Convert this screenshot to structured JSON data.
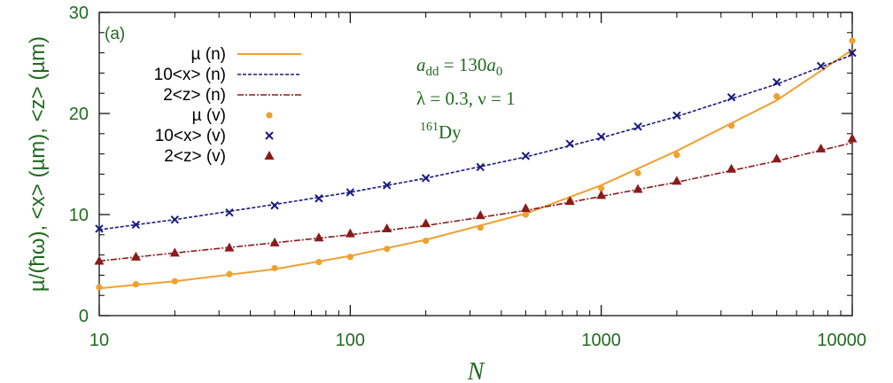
{
  "chart_data": {
    "type": "line",
    "panel_label": "(a)",
    "xlabel": "N",
    "ylabel": "µ/(ħω), <x> (µm), <z> (µm)",
    "xscale": "log",
    "xlim": [
      10,
      10000
    ],
    "ylim": [
      0,
      30
    ],
    "x_ticks": [
      10,
      100,
      1000,
      10000
    ],
    "x_tick_labels": [
      "10",
      "100",
      "1000",
      "10000"
    ],
    "y_ticks": [
      0,
      10,
      20,
      30
    ],
    "y_tick_labels": [
      "0",
      "10",
      "20",
      "30"
    ],
    "legend_position": "top-left",
    "colors": {
      "axis_text": "#1f6b1f",
      "mu": "#f0a030",
      "x": "#1a1a80",
      "z": "#8b1a1a"
    },
    "series": [
      {
        "name": "µ (n)",
        "kind": "line",
        "style": "solid",
        "color": "#f0a030",
        "x": [
          10,
          20,
          50,
          100,
          200,
          500,
          1000,
          2000,
          5000,
          10000
        ],
        "values": [
          2.7,
          3.4,
          4.6,
          5.9,
          7.5,
          10.1,
          12.9,
          16.3,
          21.3,
          26.3
        ]
      },
      {
        "name": "10<x> (n)",
        "kind": "line",
        "style": "dashed",
        "color": "#1a1a80",
        "x": [
          10,
          20,
          50,
          100,
          200,
          500,
          1000,
          2000,
          5000,
          10000
        ],
        "values": [
          8.5,
          9.5,
          11.0,
          12.2,
          13.6,
          15.7,
          17.6,
          19.7,
          22.9,
          25.8
        ]
      },
      {
        "name": "2<z> (n)",
        "kind": "line",
        "style": "dashdot",
        "color": "#8b1a1a",
        "x": [
          10,
          20,
          50,
          100,
          200,
          500,
          1000,
          2000,
          5000,
          10000
        ],
        "values": [
          5.4,
          6.2,
          7.2,
          8.0,
          8.9,
          10.4,
          11.8,
          13.2,
          15.3,
          17.1
        ]
      },
      {
        "name": "µ (v)",
        "kind": "scatter",
        "marker": "circle",
        "color": "#f0a030",
        "x": [
          10,
          14,
          20,
          33,
          50,
          75,
          100,
          140,
          200,
          330,
          500,
          750,
          1000,
          1400,
          2000,
          3300,
          5000,
          10000
        ],
        "values": [
          2.8,
          3.1,
          3.4,
          4.1,
          4.7,
          5.3,
          5.8,
          6.6,
          7.4,
          8.7,
          10.0,
          11.4,
          12.6,
          14.1,
          15.9,
          18.8,
          21.7,
          27.2
        ]
      },
      {
        "name": "10<x> (v)",
        "kind": "scatter",
        "marker": "cross",
        "color": "#1a1a80",
        "x": [
          10,
          14,
          20,
          33,
          50,
          75,
          100,
          140,
          200,
          330,
          500,
          750,
          1000,
          1400,
          2000,
          3300,
          5000,
          7500,
          10000
        ],
        "values": [
          8.6,
          9.0,
          9.5,
          10.2,
          10.9,
          11.6,
          12.2,
          12.9,
          13.6,
          14.7,
          15.8,
          17.0,
          17.7,
          18.7,
          19.8,
          21.6,
          23.1,
          24.7,
          26.0
        ]
      },
      {
        "name": "2<z> (v)",
        "kind": "scatter",
        "marker": "triangle",
        "color": "#8b1a1a",
        "x": [
          10,
          14,
          20,
          33,
          50,
          75,
          100,
          140,
          200,
          330,
          500,
          750,
          1000,
          1400,
          2000,
          3300,
          5000,
          7500,
          10000
        ],
        "values": [
          5.4,
          5.8,
          6.2,
          6.7,
          7.2,
          7.7,
          8.1,
          8.6,
          9.1,
          9.9,
          10.6,
          11.3,
          11.9,
          12.5,
          13.3,
          14.5,
          15.5,
          16.5,
          17.5
        ]
      }
    ],
    "annotations": {
      "add_main": "a",
      "add_sub": "dd",
      "add_eq": " = 130",
      "add_a0_main": "a",
      "add_a0_sub": "0",
      "lambda_line": "λ = 0.3, ν = 1",
      "isotope_mass": "161",
      "isotope_symbol": "Dy"
    }
  }
}
